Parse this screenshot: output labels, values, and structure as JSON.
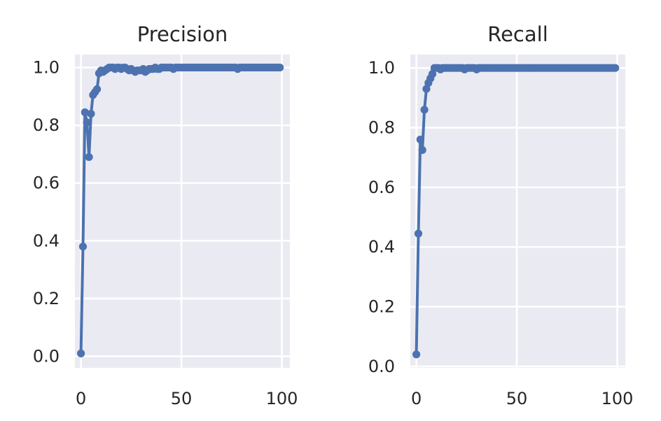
{
  "chart_data": [
    {
      "type": "line",
      "title": "Precision",
      "xlabel": "",
      "ylabel": "",
      "xlim": [
        -3,
        104
      ],
      "ylim": [
        -0.04,
        1.045
      ],
      "xticks": [
        0,
        50,
        100
      ],
      "xtick_labels": [
        "0",
        "50",
        "100"
      ],
      "yticks": [
        0.0,
        0.2,
        0.4,
        0.6,
        0.8,
        1.0
      ],
      "ytick_labels": [
        "0.0",
        "0.2",
        "0.4",
        "0.6",
        "0.8",
        "1.0"
      ],
      "grid": true,
      "series": [
        {
          "color": "#4c72b0",
          "x": [
            0,
            1,
            2,
            3,
            4,
            5,
            6,
            7,
            8,
            9,
            10,
            11,
            12,
            13,
            14,
            15,
            16,
            17,
            18,
            19,
            20,
            21,
            22,
            23,
            24,
            25,
            26,
            27,
            28,
            29,
            30,
            31,
            32,
            33,
            34,
            35,
            36,
            37,
            38,
            39,
            40,
            41,
            42,
            43,
            44,
            45,
            46,
            47,
            48,
            49,
            50,
            51,
            52,
            53,
            54,
            55,
            56,
            57,
            58,
            59,
            60,
            61,
            62,
            63,
            64,
            65,
            66,
            67,
            68,
            69,
            70,
            71,
            72,
            73,
            74,
            75,
            76,
            77,
            78,
            79,
            80,
            81,
            82,
            83,
            84,
            85,
            86,
            87,
            88,
            89,
            90,
            91,
            92,
            93,
            94,
            95,
            96,
            97,
            98,
            99
          ],
          "y": [
            0.01,
            0.38,
            0.845,
            0.81,
            0.69,
            0.84,
            0.905,
            0.915,
            0.925,
            0.98,
            0.99,
            0.985,
            0.99,
            0.995,
            1.0,
            1.0,
            1.0,
            0.995,
            1.0,
            1.0,
            0.995,
            1.0,
            1.0,
            0.995,
            0.99,
            0.995,
            0.99,
            0.985,
            0.99,
            0.99,
            0.99,
            0.995,
            0.985,
            0.99,
            0.995,
            0.995,
            0.995,
            1.0,
            0.995,
            0.995,
            1.0,
            1.0,
            1.0,
            1.0,
            1.0,
            1.0,
            0.995,
            1.0,
            1.0,
            1.0,
            1.0,
            1.0,
            1.0,
            1.0,
            1.0,
            1.0,
            1.0,
            1.0,
            1.0,
            1.0,
            1.0,
            1.0,
            1.0,
            1.0,
            1.0,
            1.0,
            1.0,
            1.0,
            1.0,
            1.0,
            1.0,
            1.0,
            1.0,
            1.0,
            1.0,
            1.0,
            1.0,
            1.0,
            0.995,
            1.0,
            1.0,
            1.0,
            1.0,
            1.0,
            1.0,
            1.0,
            1.0,
            1.0,
            1.0,
            1.0,
            1.0,
            1.0,
            1.0,
            1.0,
            1.0,
            1.0,
            1.0,
            1.0,
            1.0,
            1.0
          ]
        }
      ]
    },
    {
      "type": "line",
      "title": "Recall",
      "xlabel": "",
      "ylabel": "",
      "xlim": [
        -3,
        104
      ],
      "ylim": [
        -0.005,
        1.045
      ],
      "xticks": [
        0,
        50,
        100
      ],
      "xtick_labels": [
        "0",
        "50",
        "100"
      ],
      "yticks": [
        0.0,
        0.2,
        0.4,
        0.6,
        0.8,
        1.0
      ],
      "ytick_labels": [
        "0.0",
        "0.2",
        "0.4",
        "0.6",
        "0.8",
        "1.0"
      ],
      "grid": true,
      "series": [
        {
          "color": "#4c72b0",
          "x": [
            0,
            1,
            2,
            3,
            4,
            5,
            6,
            7,
            8,
            9,
            10,
            11,
            12,
            13,
            14,
            15,
            16,
            17,
            18,
            19,
            20,
            21,
            22,
            23,
            24,
            25,
            26,
            27,
            28,
            29,
            30,
            31,
            32,
            33,
            34,
            35,
            36,
            37,
            38,
            39,
            40,
            41,
            42,
            43,
            44,
            45,
            46,
            47,
            48,
            49,
            50,
            51,
            52,
            53,
            54,
            55,
            56,
            57,
            58,
            59,
            60,
            61,
            62,
            63,
            64,
            65,
            66,
            67,
            68,
            69,
            70,
            71,
            72,
            73,
            74,
            75,
            76,
            77,
            78,
            79,
            80,
            81,
            82,
            83,
            84,
            85,
            86,
            87,
            88,
            89,
            90,
            91,
            92,
            93,
            94,
            95,
            96,
            97,
            98,
            99
          ],
          "y": [
            0.04,
            0.445,
            0.76,
            0.725,
            0.86,
            0.93,
            0.95,
            0.965,
            0.98,
            1.0,
            1.0,
            1.0,
            0.995,
            1.0,
            1.0,
            1.0,
            1.0,
            1.0,
            1.0,
            1.0,
            1.0,
            1.0,
            1.0,
            1.0,
            0.995,
            1.0,
            1.0,
            1.0,
            1.0,
            1.0,
            0.995,
            1.0,
            1.0,
            1.0,
            1.0,
            1.0,
            1.0,
            1.0,
            1.0,
            1.0,
            1.0,
            1.0,
            1.0,
            1.0,
            1.0,
            1.0,
            1.0,
            1.0,
            1.0,
            1.0,
            1.0,
            1.0,
            1.0,
            1.0,
            1.0,
            1.0,
            1.0,
            1.0,
            1.0,
            1.0,
            1.0,
            1.0,
            1.0,
            1.0,
            1.0,
            1.0,
            1.0,
            1.0,
            1.0,
            1.0,
            1.0,
            1.0,
            1.0,
            1.0,
            1.0,
            1.0,
            1.0,
            1.0,
            1.0,
            1.0,
            1.0,
            1.0,
            1.0,
            1.0,
            1.0,
            1.0,
            1.0,
            1.0,
            1.0,
            1.0,
            1.0,
            1.0,
            1.0,
            1.0,
            1.0,
            1.0,
            1.0,
            1.0,
            1.0,
            1.0
          ]
        }
      ]
    }
  ]
}
